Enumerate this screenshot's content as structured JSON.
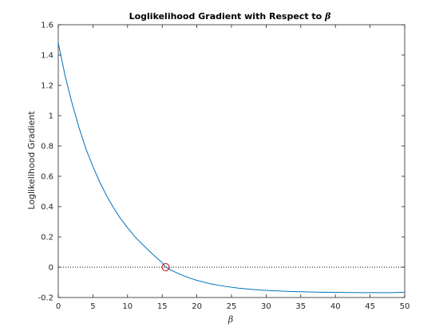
{
  "chart_data": {
    "type": "line",
    "title": "Loglikelihood Gradient with Respect to ",
    "title_symbol": "β",
    "xlabel": "β",
    "ylabel": "Loglikelihood Gradient",
    "xlim": [
      0,
      50
    ],
    "ylim": [
      -0.2,
      1.6
    ],
    "xticks": [
      0,
      5,
      10,
      15,
      20,
      25,
      30,
      35,
      40,
      45,
      50
    ],
    "yticks": [
      -0.2,
      0,
      0.2,
      0.4,
      0.6,
      0.8,
      1,
      1.2,
      1.4,
      1.6
    ],
    "xtick_labels": [
      "0",
      "5",
      "10",
      "15",
      "20",
      "25",
      "30",
      "35",
      "40",
      "45",
      "50"
    ],
    "ytick_labels": [
      "-0.2",
      "0",
      "0.2",
      "0.4",
      "0.6",
      "0.8",
      "1",
      "1.2",
      "1.4",
      "1.6"
    ],
    "grid": false,
    "series": [
      {
        "color": "#0072bd",
        "x": [
          0,
          1,
          2,
          3,
          4,
          5,
          6,
          7,
          8,
          9,
          10,
          11,
          12,
          13,
          14,
          15,
          15.5,
          16,
          17,
          18,
          19,
          20,
          22,
          24,
          26,
          28,
          30,
          32,
          34,
          36,
          38,
          40,
          42,
          44,
          46,
          48,
          50
        ],
        "y": [
          1.48,
          1.26,
          1.08,
          0.92,
          0.78,
          0.665,
          0.56,
          0.47,
          0.39,
          0.32,
          0.26,
          0.205,
          0.157,
          0.113,
          0.07,
          0.03,
          0.0,
          -0.012,
          -0.035,
          -0.055,
          -0.072,
          -0.087,
          -0.11,
          -0.126,
          -0.138,
          -0.147,
          -0.153,
          -0.157,
          -0.161,
          -0.163,
          -0.165,
          -0.166,
          -0.167,
          -0.168,
          -0.168,
          -0.168,
          -0.165
        ]
      }
    ],
    "zero_line": {
      "y": 0,
      "style": "dotted",
      "color": "#000000"
    },
    "marker": {
      "x": 15.5,
      "y": 0,
      "shape": "circle",
      "color": "#c00000"
    },
    "box": true
  }
}
